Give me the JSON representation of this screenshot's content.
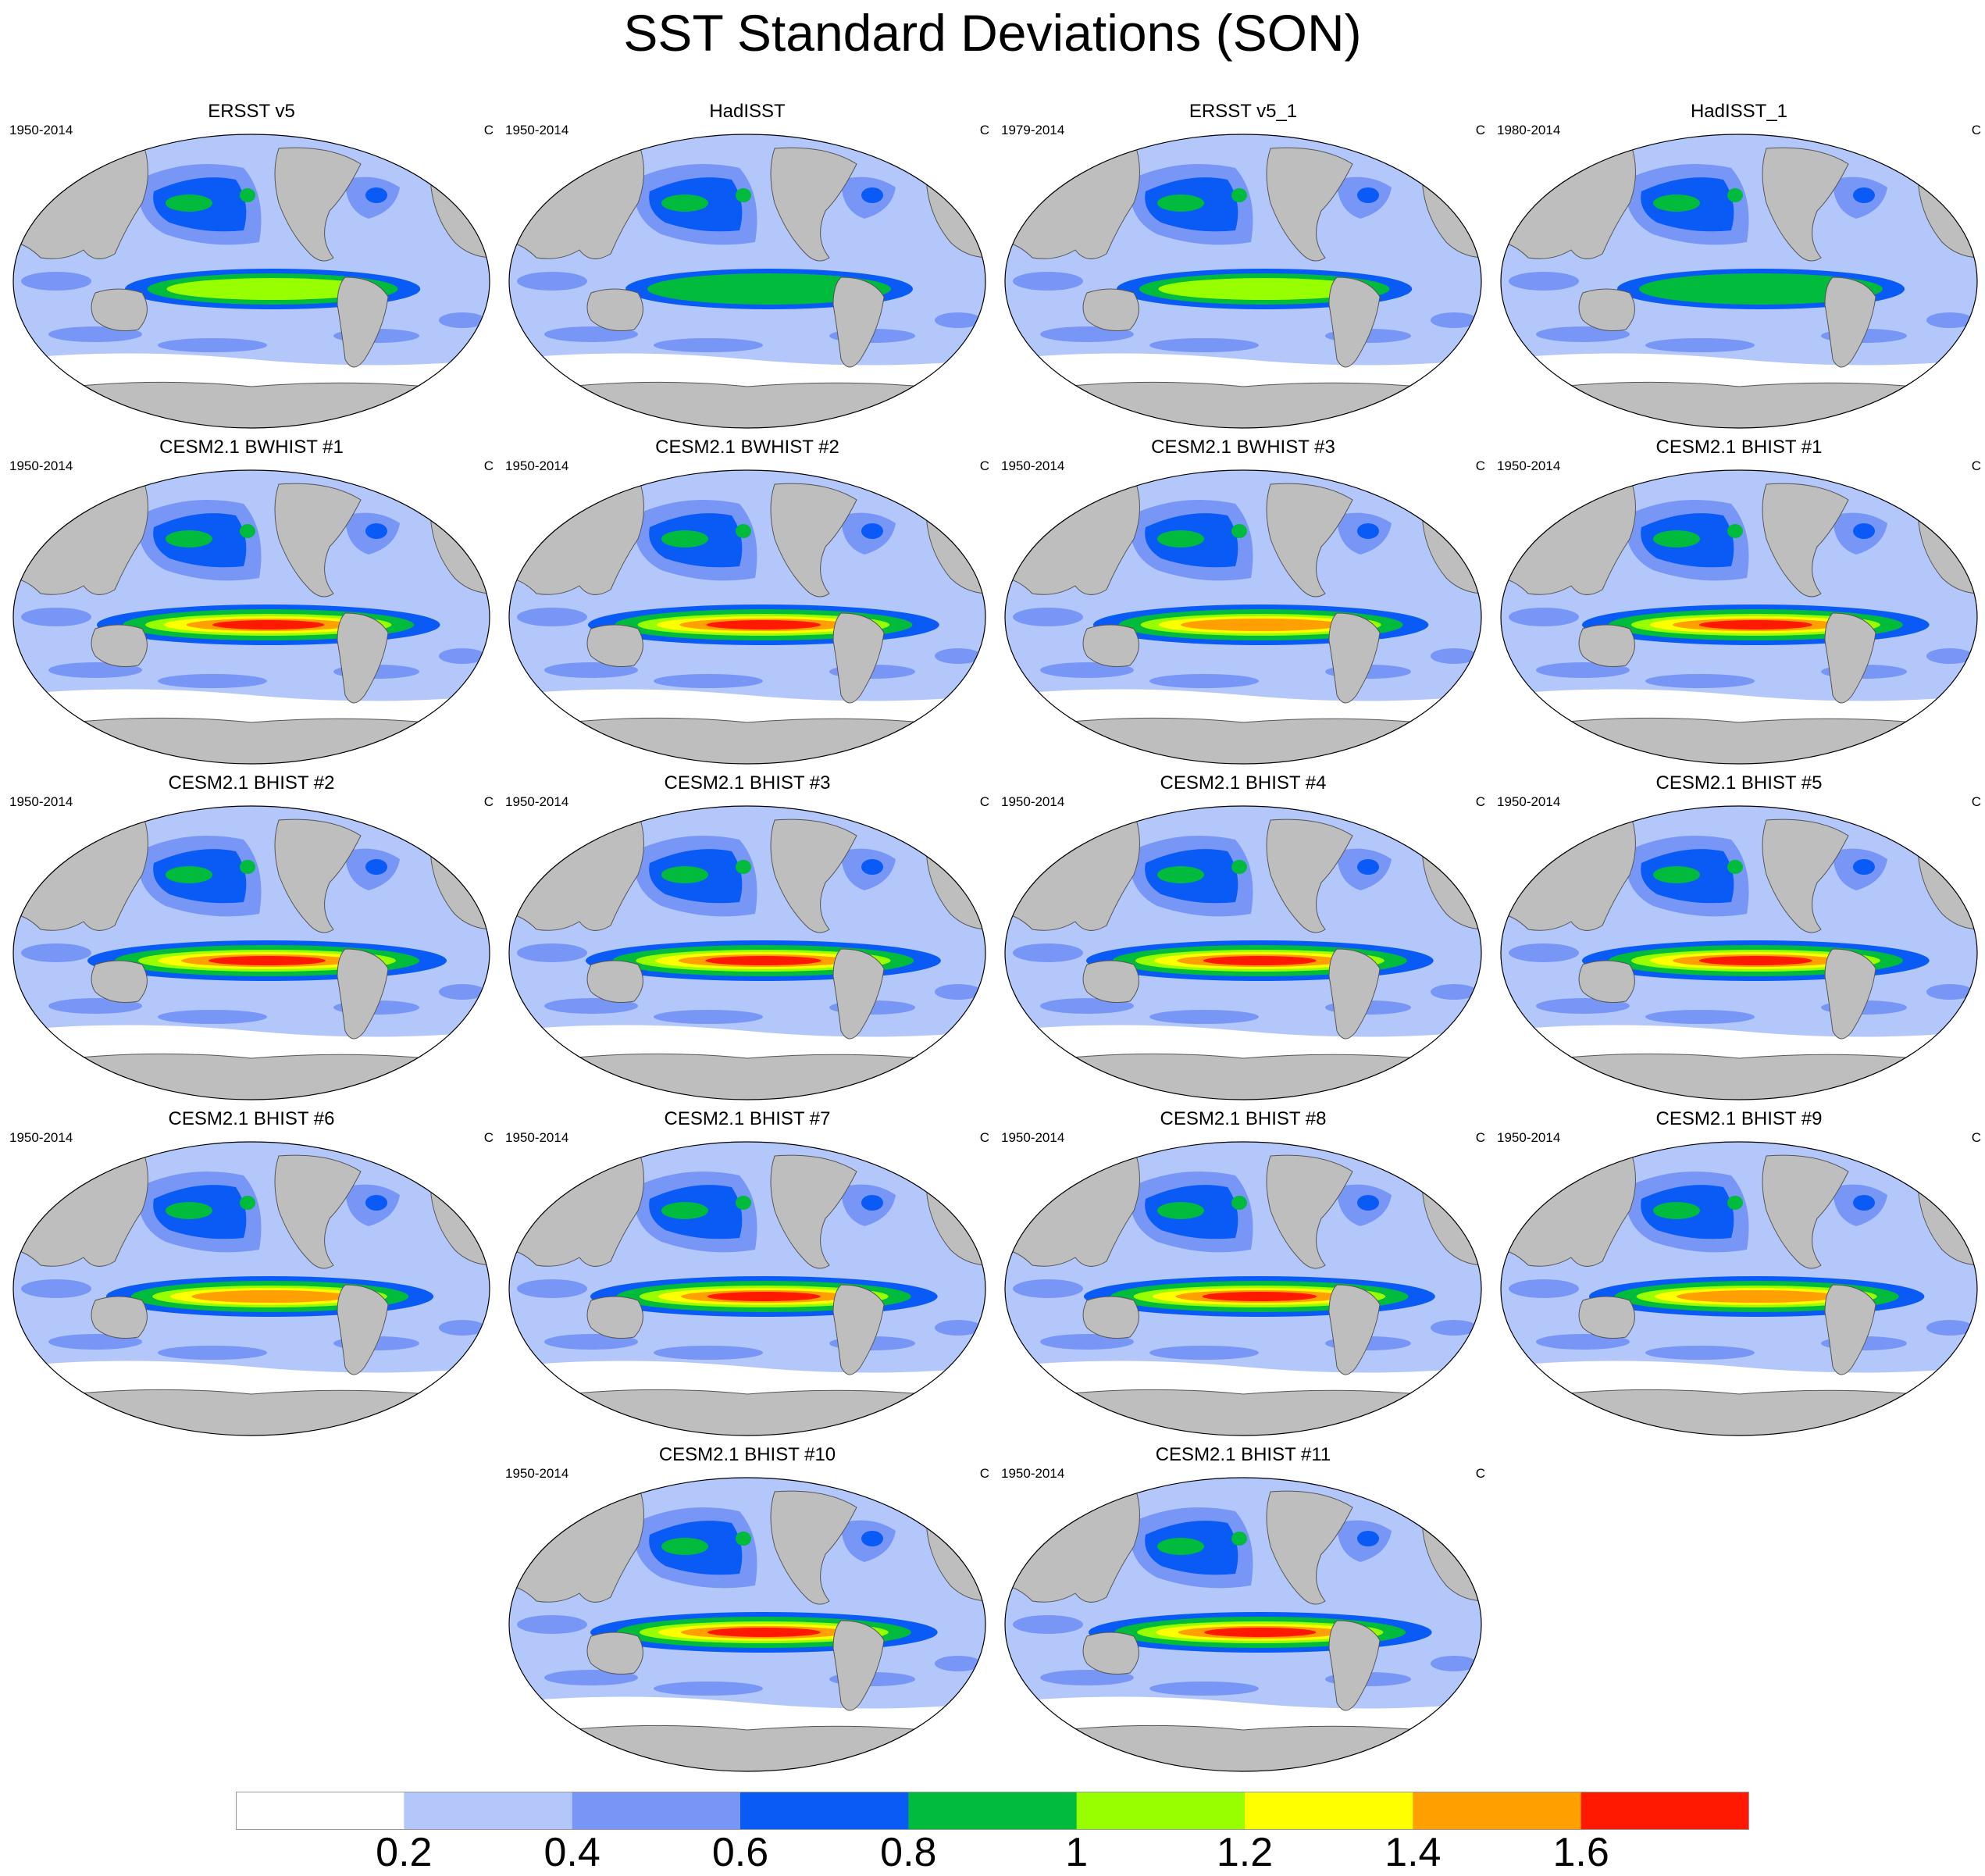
{
  "title": "SST Standard Deviations (SON)",
  "colors": {
    "land": "#bebebe",
    "coast": "#555555",
    "levels": [
      "#ffffff",
      "#b4c7fa",
      "#7896f5",
      "#0a5af5",
      "#00bb3c",
      "#97ff00",
      "#ffff00",
      "#ff9f00",
      "#ff1900"
    ]
  },
  "panels": [
    {
      "title": "ERSST v5",
      "period": "1950-2014",
      "unit": "C",
      "enso": 1.0
    },
    {
      "title": "HadISST",
      "period": "1950-2014",
      "unit": "C",
      "enso": 0.9
    },
    {
      "title": "ERSST v5_1",
      "period": "1979-2014",
      "unit": "C",
      "enso": 1.0
    },
    {
      "title": "HadISST_1",
      "period": "1980-2014",
      "unit": "C",
      "enso": 0.9
    },
    {
      "title": "CESM2.1 BWHIST #1",
      "period": "1950-2014",
      "unit": "C",
      "enso": 1.6
    },
    {
      "title": "CESM2.1 BWHIST #2",
      "period": "1950-2014",
      "unit": "C",
      "enso": 1.7
    },
    {
      "title": "CESM2.1 BWHIST #3",
      "period": "1950-2014",
      "unit": "C",
      "enso": 1.5
    },
    {
      "title": "CESM2.1 BHIST #1",
      "period": "1950-2014",
      "unit": "C",
      "enso": 1.65
    },
    {
      "title": "CESM2.1 BHIST #2",
      "period": "1950-2014",
      "unit": "C",
      "enso": 1.8
    },
    {
      "title": "CESM2.1 BHIST #3",
      "period": "1950-2014",
      "unit": "C",
      "enso": 1.75
    },
    {
      "title": "CESM2.1 BHIST #4",
      "period": "1950-2014",
      "unit": "C",
      "enso": 1.65
    },
    {
      "title": "CESM2.1 BHIST #5",
      "period": "1950-2014",
      "unit": "C",
      "enso": 1.65
    },
    {
      "title": "CESM2.1 BHIST #6",
      "period": "1950-2014",
      "unit": "C",
      "enso": 1.4
    },
    {
      "title": "CESM2.1 BHIST #7",
      "period": "1950-2014",
      "unit": "C",
      "enso": 1.65
    },
    {
      "title": "CESM2.1 BHIST #8",
      "period": "1950-2014",
      "unit": "C",
      "enso": 1.7
    },
    {
      "title": "CESM2.1 BHIST #9",
      "period": "1950-2014",
      "unit": "C",
      "enso": 1.5
    },
    {
      "title": "CESM2.1 BHIST #10",
      "period": "1950-2014",
      "unit": "C",
      "enso": 1.65
    },
    {
      "title": "CESM2.1 BHIST #11",
      "period": "1950-2014",
      "unit": "C",
      "enso": 1.6
    }
  ],
  "colorbar": {
    "levels": [
      "0.2",
      "0.4",
      "0.6",
      "0.8",
      "1",
      "1.2",
      "1.4",
      "1.6"
    ],
    "bounds": [
      0,
      0.2,
      0.4,
      0.6,
      0.8,
      1.0,
      1.2,
      1.4,
      1.6,
      1.8
    ]
  }
}
